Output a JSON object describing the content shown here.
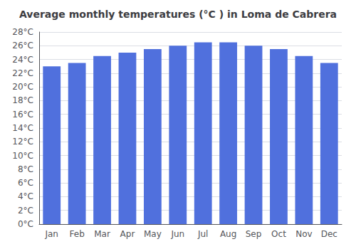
{
  "chart_data": {
    "type": "bar",
    "title": "Average monthly temperatures (°C ) in Loma de Cabrera",
    "categories": [
      "Jan",
      "Feb",
      "Mar",
      "Apr",
      "May",
      "Jun",
      "Jul",
      "Aug",
      "Sep",
      "Oct",
      "Nov",
      "Dec"
    ],
    "values": [
      23.0,
      23.5,
      24.5,
      25.0,
      25.5,
      26.0,
      26.5,
      26.5,
      26.0,
      25.5,
      24.5,
      23.5
    ],
    "ylim": [
      0,
      28
    ],
    "yticks": [
      {
        "value": 0,
        "label": "0°C"
      },
      {
        "value": 2,
        "label": "2°C"
      },
      {
        "value": 4,
        "label": "4°C"
      },
      {
        "value": 6,
        "label": "6°C"
      },
      {
        "value": 8,
        "label": "8°C"
      },
      {
        "value": 10,
        "label": "10°C"
      },
      {
        "value": 12,
        "label": "12°C"
      },
      {
        "value": 14,
        "label": "14°C"
      },
      {
        "value": 16,
        "label": "16°C"
      },
      {
        "value": 18,
        "label": "18°C"
      },
      {
        "value": 20,
        "label": "20°C"
      },
      {
        "value": 22,
        "label": "22°C"
      },
      {
        "value": 24,
        "label": "24°C"
      },
      {
        "value": 26,
        "label": "26°C"
      },
      {
        "value": 28,
        "label": "28°C"
      }
    ],
    "grid": true
  }
}
